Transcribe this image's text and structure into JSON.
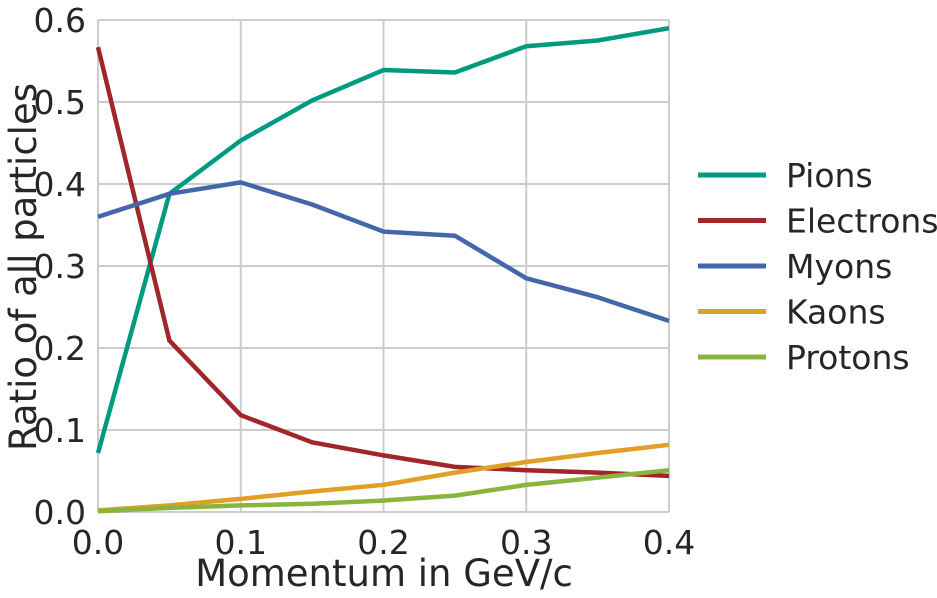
{
  "chart_data": {
    "type": "line",
    "title": "",
    "xlabel": "Momentum in GeV/c",
    "ylabel": "Ratio of all particles",
    "xlim": [
      0.0,
      0.4
    ],
    "ylim": [
      0.0,
      0.6
    ],
    "xticks": [
      "0.0",
      "0.1",
      "0.2",
      "0.3",
      "0.4"
    ],
    "yticks": [
      "0.0",
      "0.1",
      "0.2",
      "0.3",
      "0.4",
      "0.5",
      "0.6"
    ],
    "grid": true,
    "legend_position": "outside-right",
    "x": [
      0.0,
      0.05,
      0.1,
      0.15,
      0.2,
      0.25,
      0.3,
      0.35,
      0.4
    ],
    "series": [
      {
        "name": "Pions",
        "color": "#009a80",
        "values": [
          0.072,
          0.388,
          0.453,
          0.502,
          0.539,
          0.536,
          0.568,
          0.575,
          0.59
        ]
      },
      {
        "name": "Electrons",
        "color": "#a0262a",
        "values": [
          0.567,
          0.209,
          0.118,
          0.085,
          0.069,
          0.055,
          0.051,
          0.048,
          0.044
        ]
      },
      {
        "name": "Myons",
        "color": "#4467aa",
        "values": [
          0.36,
          0.388,
          0.402,
          0.375,
          0.342,
          0.337,
          0.285,
          0.262,
          0.233
        ]
      },
      {
        "name": "Kaons",
        "color": "#e19f26",
        "values": [
          0.002,
          0.008,
          0.016,
          0.025,
          0.033,
          0.048,
          0.061,
          0.072,
          0.082
        ]
      },
      {
        "name": "Protons",
        "color": "#88b53e",
        "values": [
          0.001,
          0.005,
          0.008,
          0.01,
          0.014,
          0.02,
          0.033,
          0.042,
          0.051
        ]
      }
    ]
  }
}
